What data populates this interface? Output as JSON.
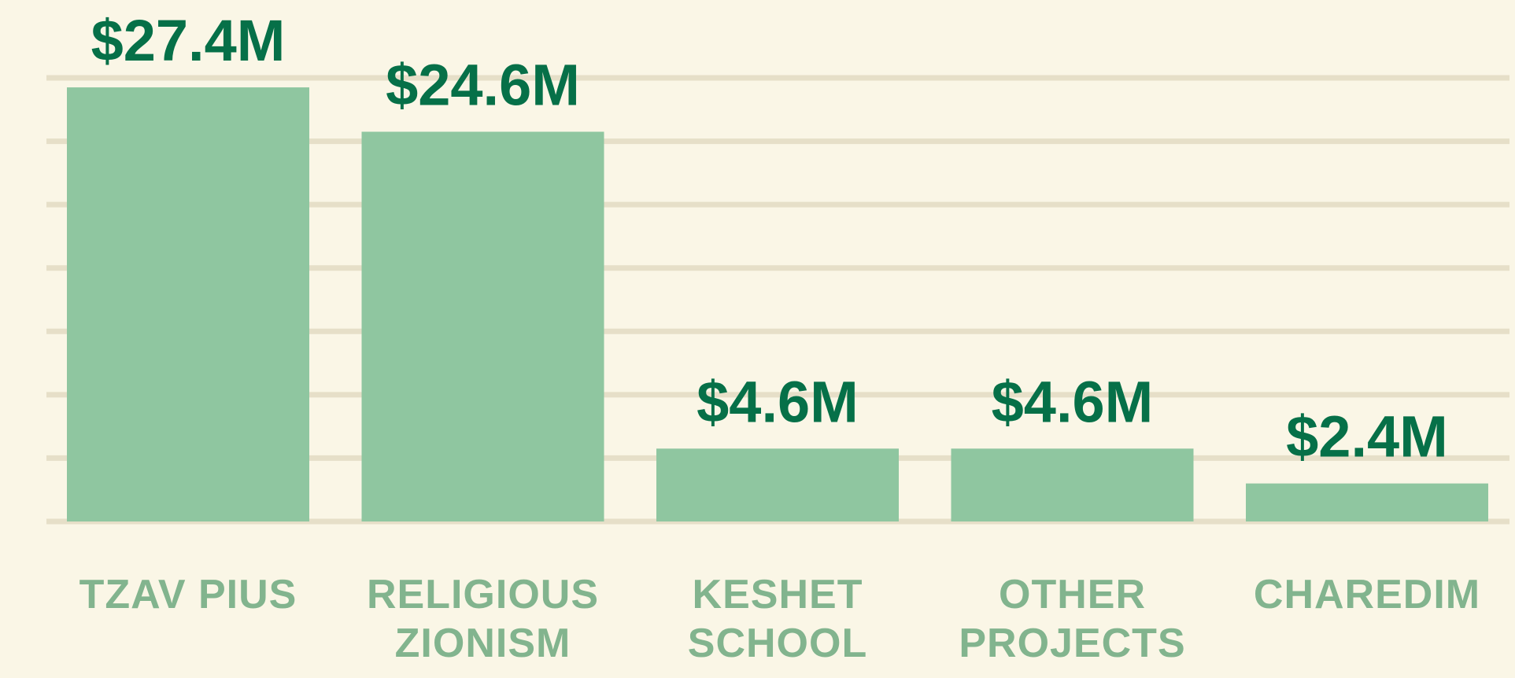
{
  "chart_data": {
    "type": "bar",
    "categories": [
      "TZAV PIUS",
      "RELIGIOUS ZIONISM",
      "KESHET SCHOOL",
      "OTHER PROJECTS",
      "CHAREDIM"
    ],
    "values": [
      27.4,
      24.6,
      4.6,
      4.6,
      2.4
    ],
    "value_labels": [
      "$27.4M",
      "$24.6M",
      "$4.6M",
      "$4.6M",
      "$2.4M"
    ],
    "color": "#8fc6a0",
    "ylim": [
      0,
      28
    ],
    "yticks": [
      0,
      4,
      8,
      12,
      16,
      20,
      24,
      28
    ],
    "grid": true
  }
}
